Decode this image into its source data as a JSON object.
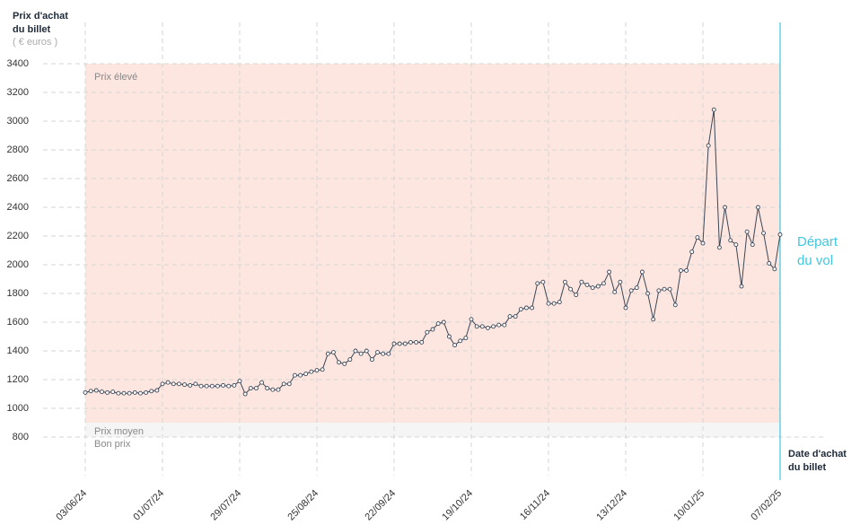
{
  "chart_data": {
    "type": "line",
    "y_title": [
      "Prix d'achat",
      "du billet"
    ],
    "y_unit": "( € euros )",
    "x_title": [
      "Date d'achat",
      "du billet"
    ],
    "departure_label": [
      "Départ",
      "du vol"
    ],
    "zone": {
      "label": "Prix élevé",
      "from": 900,
      "to": 3400,
      "color": "#fde6e0"
    },
    "below_labels": [
      "Prix moyen",
      "Bon prix"
    ],
    "color": "#3b4657",
    "departure_color": "#3fc8e0",
    "ylim": [
      800,
      3400
    ],
    "yticks": [
      800,
      1000,
      1200,
      1400,
      1600,
      1800,
      2000,
      2200,
      2400,
      2600,
      2800,
      3000,
      3200,
      3400
    ],
    "grid": true,
    "categories": [
      "03/06/24",
      null,
      null,
      null,
      null,
      null,
      null,
      null,
      null,
      null,
      null,
      null,
      null,
      null,
      "01/07/24",
      null,
      null,
      null,
      null,
      null,
      null,
      null,
      null,
      null,
      null,
      null,
      null,
      null,
      "29/07/24",
      null,
      null,
      null,
      null,
      null,
      null,
      null,
      null,
      null,
      null,
      null,
      null,
      null,
      "25/08/24",
      null,
      null,
      null,
      null,
      null,
      null,
      null,
      null,
      null,
      null,
      null,
      null,
      null,
      "22/09/24",
      null,
      null,
      null,
      null,
      null,
      null,
      null,
      null,
      null,
      null,
      null,
      null,
      null,
      "19/10/24",
      null,
      null,
      null,
      null,
      null,
      null,
      null,
      null,
      null,
      null,
      null,
      null,
      null,
      "16/11/24",
      null,
      null,
      null,
      null,
      null,
      null,
      null,
      null,
      null,
      null,
      null,
      null,
      null,
      "13/12/24",
      null,
      null,
      null,
      null,
      null,
      null,
      null,
      null,
      null,
      null,
      null,
      null,
      null,
      "10/01/25",
      null,
      null,
      null,
      null,
      null,
      null,
      null,
      null,
      null,
      null,
      null,
      null,
      null,
      "07/02/25"
    ],
    "values": [
      1110,
      1120,
      1125,
      1115,
      1110,
      1115,
      1105,
      1105,
      1105,
      1110,
      1105,
      1110,
      1120,
      1125,
      1170,
      1180,
      1170,
      1170,
      1165,
      1160,
      1170,
      1155,
      1155,
      1155,
      1155,
      1160,
      1155,
      1160,
      1190,
      1100,
      1140,
      1140,
      1180,
      1140,
      1130,
      1130,
      1170,
      1170,
      1230,
      1230,
      1240,
      1255,
      1265,
      1270,
      1380,
      1390,
      1320,
      1310,
      1340,
      1400,
      1380,
      1400,
      1340,
      1390,
      1380,
      1380,
      1450,
      1450,
      1450,
      1460,
      1460,
      1460,
      1530,
      1550,
      1590,
      1600,
      1500,
      1440,
      1470,
      1490,
      1620,
      1570,
      1570,
      1560,
      1570,
      1580,
      1580,
      1640,
      1640,
      1690,
      1700,
      1700,
      1870,
      1880,
      1730,
      1730,
      1740,
      1880,
      1830,
      1790,
      1880,
      1860,
      1840,
      1850,
      1870,
      1950,
      1810,
      1880,
      1700,
      1820,
      1840,
      1950,
      1800,
      1620,
      1820,
      1830,
      1830,
      1720,
      1960,
      1960,
      2090,
      2190,
      2150,
      2830,
      3080,
      2120,
      2400,
      2170,
      2140,
      1850,
      2230,
      2140,
      2400,
      2220,
      2010,
      1970,
      2210
    ]
  }
}
